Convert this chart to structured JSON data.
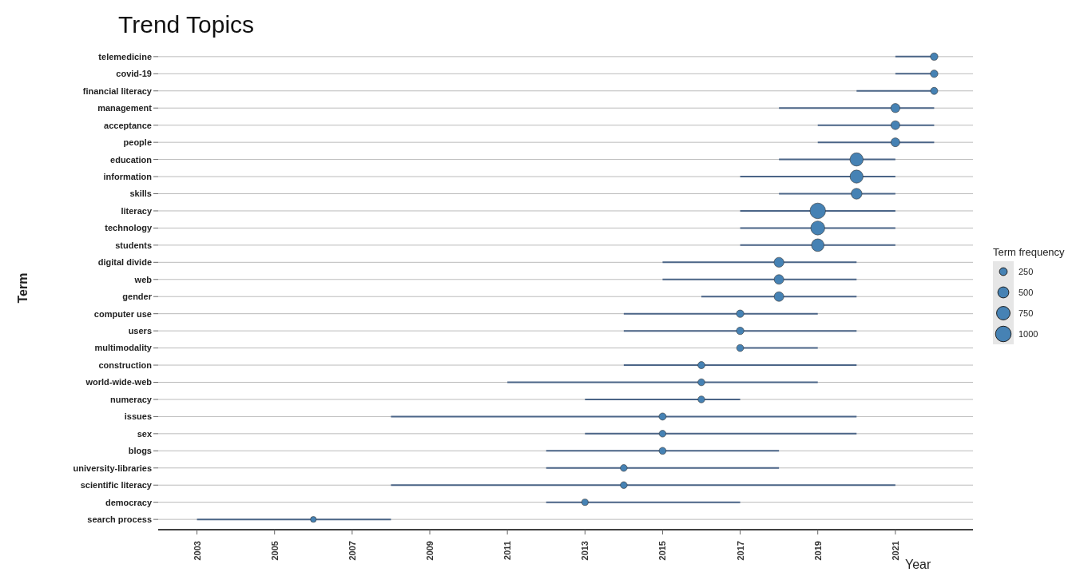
{
  "chart_data": {
    "type": "bubble",
    "orientation": "horizontal",
    "title": "Trend Topics",
    "xlabel": "Year",
    "ylabel": "Term",
    "legend_title": "Term frequency",
    "grid": "y",
    "color": "#4682b4",
    "categories": [
      "telemedicine",
      "covid-19",
      "financial literacy",
      "management",
      "acceptance",
      "people",
      "education",
      "information",
      "skills",
      "literacy",
      "technology",
      "students",
      "digital divide",
      "web",
      "gender",
      "computer use",
      "users",
      "multimodality",
      "construction",
      "world-wide-web",
      "numeracy",
      "issues",
      "sex",
      "blogs",
      "university-libraries",
      "scientific literacy",
      "democracy",
      "search process"
    ],
    "values": [
      2022,
      2022,
      2022,
      2021,
      2021,
      2021,
      2020,
      2020,
      2020,
      2019,
      2019,
      2019,
      2018,
      2018,
      2018,
      2017,
      2017,
      2017,
      2016,
      2016,
      2016,
      2015,
      2015,
      2015,
      2014,
      2014,
      2013,
      2006
    ],
    "errors": [
      [
        2021,
        2022
      ],
      [
        2021,
        2022
      ],
      [
        2020,
        2022
      ],
      [
        2018,
        2022
      ],
      [
        2019,
        2022
      ],
      [
        2019,
        2022
      ],
      [
        2018,
        2021
      ],
      [
        2017,
        2021
      ],
      [
        2018,
        2021
      ],
      [
        2017,
        2021
      ],
      [
        2017,
        2021
      ],
      [
        2017,
        2021
      ],
      [
        2015,
        2020
      ],
      [
        2015,
        2020
      ],
      [
        2016,
        2020
      ],
      [
        2014,
        2019
      ],
      [
        2014,
        2020
      ],
      [
        2017,
        2019
      ],
      [
        2014,
        2020
      ],
      [
        2011,
        2019
      ],
      [
        2013,
        2017
      ],
      [
        2008,
        2020
      ],
      [
        2013,
        2020
      ],
      [
        2012,
        2018
      ],
      [
        2012,
        2018
      ],
      [
        2008,
        2021
      ],
      [
        2012,
        2017
      ],
      [
        2003,
        2008
      ]
    ],
    "sizes": [
      230,
      230,
      210,
      340,
      320,
      320,
      720,
      700,
      480,
      1000,
      800,
      650,
      400,
      380,
      380,
      230,
      230,
      200,
      210,
      200,
      190,
      210,
      190,
      200,
      190,
      190,
      170,
      140
    ],
    "size_legend": [
      250,
      500,
      750,
      1000
    ],
    "xlim": [
      2002,
      2023
    ],
    "xticks": [
      2003,
      2005,
      2007,
      2009,
      2011,
      2013,
      2015,
      2017,
      2019,
      2021
    ]
  }
}
